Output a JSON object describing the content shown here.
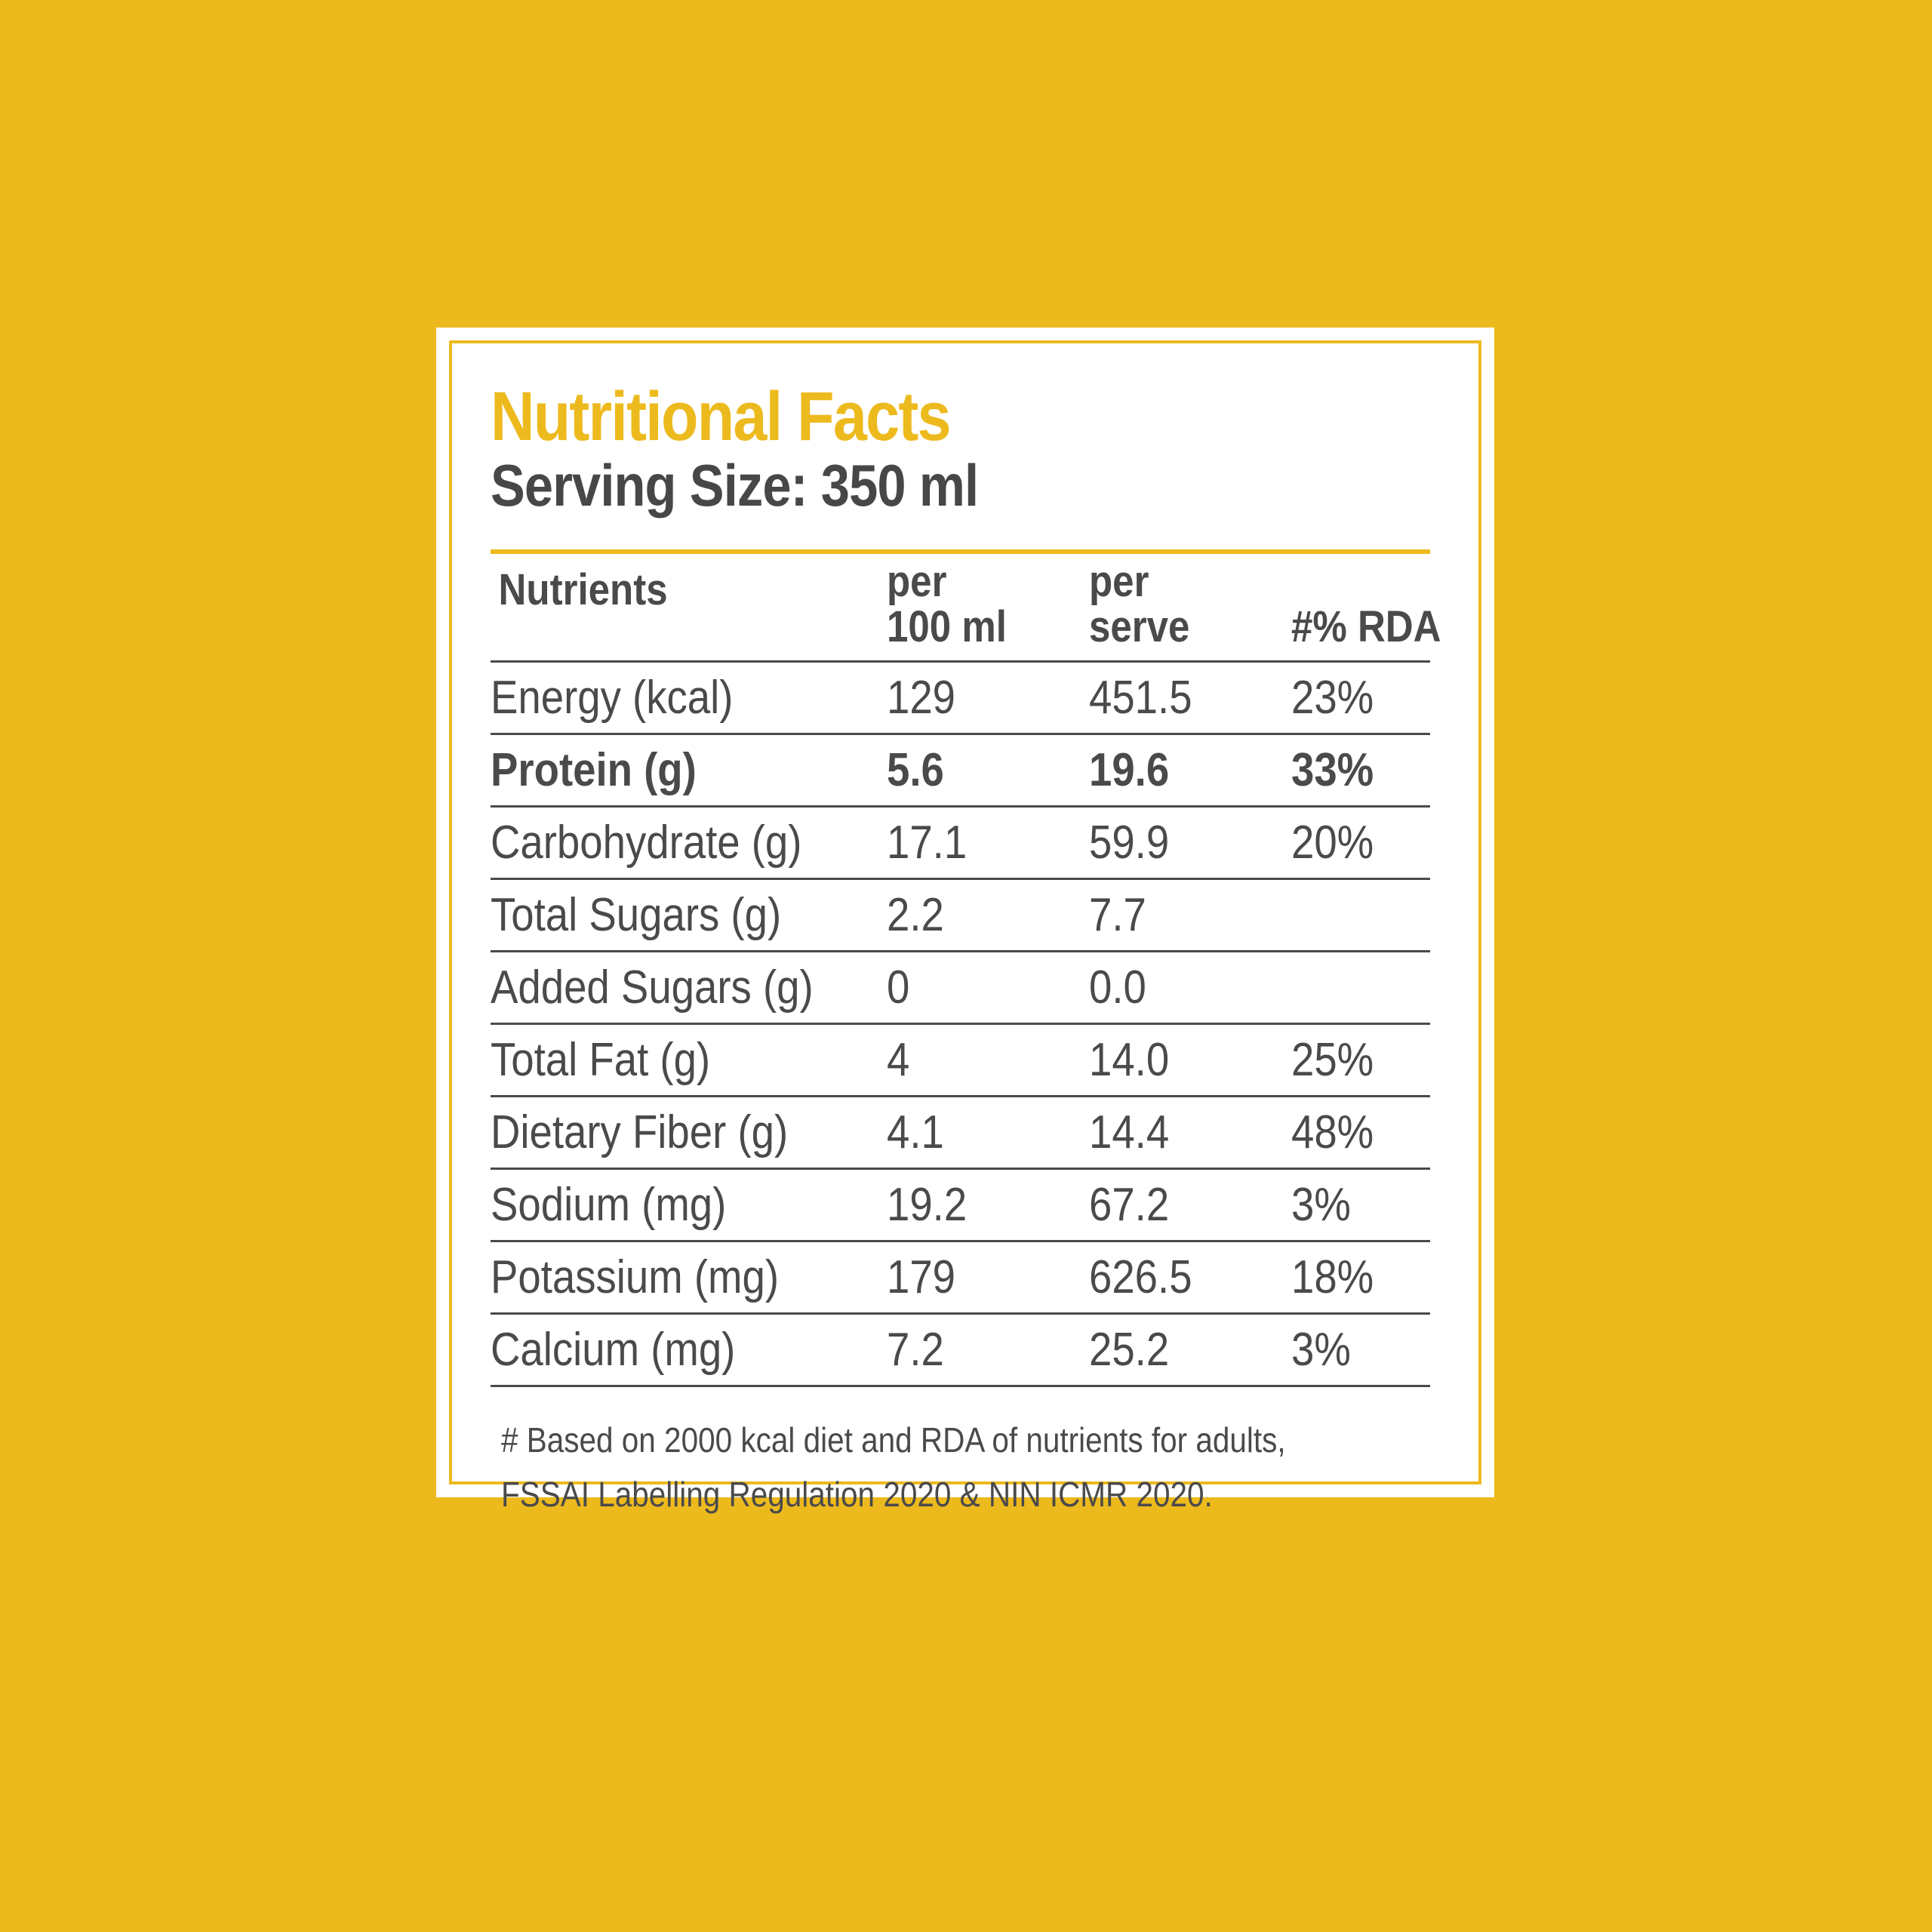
{
  "label": {
    "title": "Nutritional Facts",
    "serving_size": "Serving Size: 350 ml"
  },
  "colors": {
    "background": "#EDBA1E",
    "accent": "#EDBA1E",
    "text": "#4A4A4A",
    "card": "#FFFFFF"
  },
  "table": {
    "headers": {
      "nutrients": "Nutrients",
      "per100_line1": "per",
      "per100_line2": "100 ml",
      "perserve_line1": "per",
      "perserve_line2": "serve",
      "rda": "#% RDA"
    },
    "rows": [
      {
        "nutrient": "Energy (kcal)",
        "per100": "129",
        "perserve": "451.5",
        "rda": "23%"
      },
      {
        "nutrient": "Protein (g)",
        "per100": "5.6",
        "perserve": "19.6",
        "rda": "33%"
      },
      {
        "nutrient": "Carbohydrate (g)",
        "per100": "17.1",
        "perserve": "59.9",
        "rda": "20%"
      },
      {
        "nutrient": "Total Sugars (g)",
        "per100": "2.2",
        "perserve": "7.7",
        "rda": ""
      },
      {
        "nutrient": "Added Sugars (g)",
        "per100": "0",
        "perserve": "0.0",
        "rda": ""
      },
      {
        "nutrient": "Total Fat (g)",
        "per100": "4",
        "perserve": "14.0",
        "rda": "25%"
      },
      {
        "nutrient": "Dietary Fiber (g)",
        "per100": "4.1",
        "perserve": "14.4",
        "rda": "48%"
      },
      {
        "nutrient": "Sodium (mg)",
        "per100": "19.2",
        "perserve": "67.2",
        "rda": "3%"
      },
      {
        "nutrient": "Potassium (mg)",
        "per100": "179",
        "perserve": "626.5",
        "rda": "18%"
      },
      {
        "nutrient": "Calcium (mg)",
        "per100": "7.2",
        "perserve": "25.2",
        "rda": "3%"
      }
    ]
  },
  "footnote": {
    "line1": "# Based on 2000 kcal diet and RDA of nutrients for adults,",
    "line2": "FSSAI Labelling Regulation 2020 & NIN ICMR 2020."
  }
}
